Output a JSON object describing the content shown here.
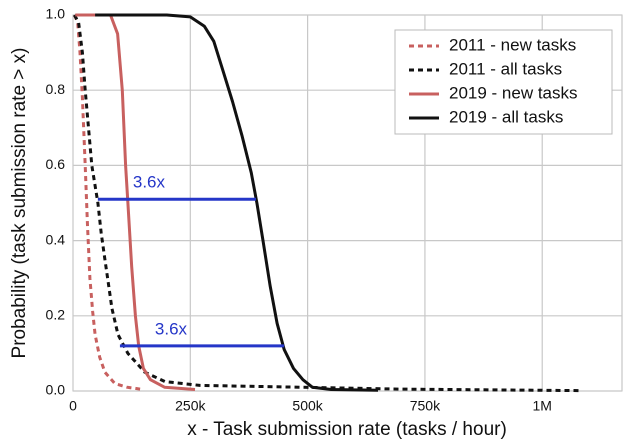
{
  "chart_data": {
    "type": "line",
    "x_label": "x - Task submission rate (tasks / hour)",
    "y_label": "Probability (task submission rate > x)",
    "xlim": [
      0,
      1170000
    ],
    "ylim": [
      0,
      1
    ],
    "xticks": [
      0,
      {
        "value": 250000,
        "label": "250k"
      },
      {
        "value": 500000,
        "label": "500k"
      },
      {
        "value": 750000,
        "label": "750k"
      },
      {
        "value": 1000000,
        "label": "1M"
      }
    ],
    "yticks": [
      {
        "value": 0,
        "label": "0.0"
      },
      0.2,
      0.4,
      0.6,
      0.8,
      {
        "value": 1,
        "label": "1.0"
      }
    ],
    "grid": true,
    "legend": "upper right",
    "series": [
      {
        "name": "2011 - new tasks",
        "color": "#c8605f",
        "dash": true,
        "x": [
          3000,
          10000,
          15000,
          20000,
          26000,
          31000,
          36000,
          42000,
          47000,
          57000,
          68000,
          89000,
          115000,
          143000
        ],
        "values": [
          1,
          0.98,
          0.9,
          0.78,
          0.6,
          0.44,
          0.3,
          0.21,
          0.15,
          0.09,
          0.05,
          0.02,
          0.01,
          0.005
        ]
      },
      {
        "name": "2011 - all tasks",
        "color": "#111111",
        "dash": true,
        "x": [
          3000,
          12000,
          20000,
          26000,
          33000,
          40000,
          53000,
          60000,
          68000,
          76000,
          83000,
          96000,
          117000,
          153000,
          196000,
          270000,
          483000,
          696000,
          1080000
        ],
        "values": [
          1,
          0.98,
          0.9,
          0.8,
          0.7,
          0.6,
          0.5,
          0.42,
          0.35,
          0.28,
          0.22,
          0.15,
          0.1,
          0.05,
          0.025,
          0.015,
          0.01,
          0.005,
          0.001
        ]
      },
      {
        "name": "2019 - new tasks",
        "color": "#c8605f",
        "dash": false,
        "x": [
          5000,
          80000,
          95000,
          105000,
          112000,
          117000,
          125000,
          133000,
          140000,
          150000,
          165000,
          195000,
          260000
        ],
        "values": [
          1,
          1,
          0.95,
          0.8,
          0.6,
          0.5,
          0.33,
          0.2,
          0.12,
          0.06,
          0.03,
          0.01,
          0.004
        ]
      },
      {
        "name": "2019 - all tasks",
        "color": "#111111",
        "dash": false,
        "x": [
          47000,
          200000,
          250000,
          280000,
          300000,
          320000,
          340000,
          360000,
          380000,
          392000,
          405000,
          420000,
          435000,
          450000,
          470000,
          490000,
          510000,
          550000,
          650000
        ],
        "values": [
          1,
          1,
          0.995,
          0.97,
          0.93,
          0.85,
          0.77,
          0.68,
          0.58,
          0.5,
          0.4,
          0.28,
          0.18,
          0.11,
          0.06,
          0.03,
          0.01,
          0.004,
          0.002
        ]
      }
    ],
    "annotations": [
      {
        "text": "3.6x",
        "color": "#2536c8",
        "x": [
          53000,
          390000
        ],
        "y": 0.51
      },
      {
        "text": "3.6x",
        "color": "#2536c8",
        "x": [
          100000,
          450000
        ],
        "y": 0.12
      }
    ]
  }
}
